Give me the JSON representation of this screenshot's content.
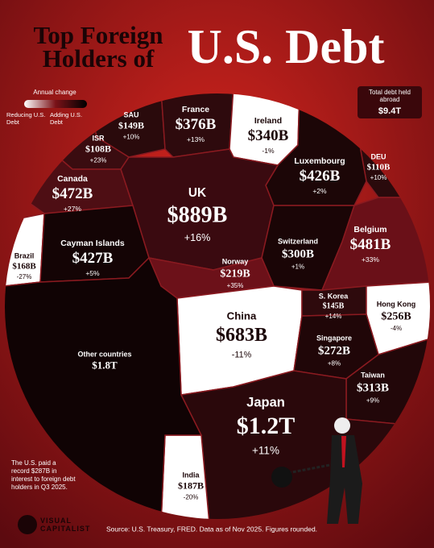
{
  "chart_data": {
    "type": "voronoi",
    "title_lines": [
      "Top Foreign",
      "Holders of",
      "U.S. Debt"
    ],
    "legend_title": "Annual change",
    "legend_low": "Reducing U.S. Debt",
    "legend_high": "Adding U.S. Debt",
    "total_label": "Total debt held abroad",
    "total_value": "$9.4T",
    "note": "The U.S. paid a record $287B in interest to foreign debt holders in Q3 2025.",
    "brand": "VISUAL CAPITALIST",
    "source": "Source: U.S. Treasury, FRED. Data as of Nov 2025. Figures rounded.",
    "cells": [
      {
        "name": "SAU",
        "value": 149,
        "value_label": "$149B",
        "change": 10,
        "change_label": "+10%",
        "color": "#2a0a0c"
      },
      {
        "name": "ISR",
        "value": 108,
        "value_label": "$108B",
        "change": 23,
        "change_label": "+23%",
        "color": "#3a0c10"
      },
      {
        "name": "France",
        "value": 376,
        "value_label": "$376B",
        "change": 13,
        "change_label": "+13%",
        "color": "#2e0a0d"
      },
      {
        "name": "Ireland",
        "value": 340,
        "value_label": "$340B",
        "change": -1,
        "change_label": "-1%",
        "color": "#ffffff"
      },
      {
        "name": "DEU",
        "value": 110,
        "value_label": "$110B",
        "change": 10,
        "change_label": "+10%",
        "color": "#2a0a0c"
      },
      {
        "name": "Luxembourg",
        "value": 426,
        "value_label": "$426B",
        "change": 2,
        "change_label": "+2%",
        "color": "#1c0607"
      },
      {
        "name": "Canada",
        "value": 472,
        "value_label": "$472B",
        "change": 27,
        "change_label": "+27%",
        "color": "#4e0e14"
      },
      {
        "name": "UK",
        "value": 889,
        "value_label": "$889B",
        "change": 16,
        "change_label": "+16%",
        "color": "#3a0a10"
      },
      {
        "name": "Brazil",
        "value": 168,
        "value_label": "$168B",
        "change": -27,
        "change_label": "-27%",
        "color": "#ffffff"
      },
      {
        "name": "Cayman Islands",
        "value": 427,
        "value_label": "$427B",
        "change": 5,
        "change_label": "+5%",
        "color": "#140405"
      },
      {
        "name": "Switzerland",
        "value": 300,
        "value_label": "$300B",
        "change": 1,
        "change_label": "+1%",
        "color": "#1a0506"
      },
      {
        "name": "Belgium",
        "value": 481,
        "value_label": "$481B",
        "change": 33,
        "change_label": "+33%",
        "color": "#6a1018"
      },
      {
        "name": "Norway",
        "value": 219,
        "value_label": "$219B",
        "change": 35,
        "change_label": "+35%",
        "color": "#6c1119"
      },
      {
        "name": "China",
        "value": 683,
        "value_label": "$683B",
        "change": -11,
        "change_label": "-11%",
        "color": "#ffffff"
      },
      {
        "name": "S. Korea",
        "value": 145,
        "value_label": "$145B",
        "change": 14,
        "change_label": "+14%",
        "color": "#2e0a0d"
      },
      {
        "name": "Hong Kong",
        "value": 256,
        "value_label": "$256B",
        "change": -4,
        "change_label": "-4%",
        "color": "#ffffff"
      },
      {
        "name": "Singapore",
        "value": 272,
        "value_label": "$272B",
        "change": 8,
        "change_label": "+8%",
        "color": "#200608"
      },
      {
        "name": "Taiwan",
        "value": 313,
        "value_label": "$313B",
        "change": 9,
        "change_label": "+9%",
        "color": "#220709"
      },
      {
        "name": "Japan",
        "value": 1200,
        "value_label": "$1.2T",
        "change": 11,
        "change_label": "+11%",
        "color": "#2a080b"
      },
      {
        "name": "India",
        "value": 187,
        "value_label": "$187B",
        "change": -20,
        "change_label": "-20%",
        "color": "#ffffff"
      },
      {
        "name": "Other countries",
        "value": 1800,
        "value_label": "$1.8T",
        "color": "#100304"
      }
    ]
  }
}
